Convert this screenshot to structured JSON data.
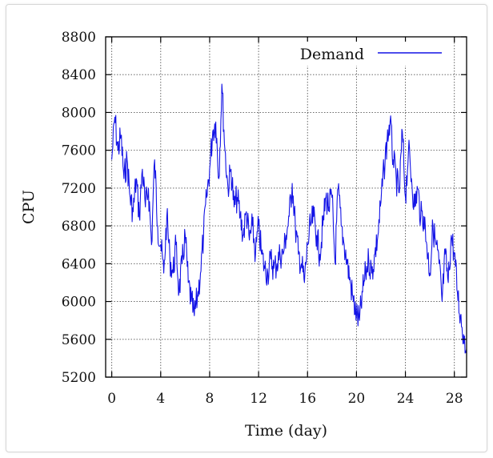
{
  "chart_data": {
    "type": "line",
    "title": "",
    "xlabel": "Time (day)",
    "ylabel": "CPU",
    "xlim": [
      -0.5,
      29
    ],
    "ylim": [
      5200,
      8800
    ],
    "x_ticks": [
      0,
      4,
      8,
      12,
      16,
      20,
      24,
      28
    ],
    "y_ticks": [
      5200,
      5600,
      6000,
      6400,
      6800,
      7200,
      7600,
      8000,
      8400,
      8800
    ],
    "grid": true,
    "legend": "top-right",
    "colors": {
      "series": "#1414e6",
      "grid": "#555555",
      "axis": "#000000"
    },
    "series": [
      {
        "name": "Demand",
        "x": [
          0,
          0.25,
          0.5,
          0.75,
          1,
          1.25,
          1.5,
          1.75,
          2,
          2.25,
          2.5,
          2.75,
          3,
          3.25,
          3.5,
          3.75,
          4,
          4.25,
          4.5,
          4.75,
          5,
          5.25,
          5.5,
          5.75,
          6,
          6.25,
          6.5,
          6.75,
          7,
          7.25,
          7.5,
          7.75,
          8,
          8.25,
          8.5,
          8.75,
          9,
          9.25,
          9.5,
          9.75,
          10,
          10.25,
          10.5,
          10.75,
          11,
          11.25,
          11.5,
          11.75,
          12,
          12.25,
          12.5,
          12.75,
          13,
          13.25,
          13.5,
          13.75,
          14,
          14.25,
          14.5,
          14.75,
          15,
          15.25,
          15.5,
          15.75,
          16,
          16.25,
          16.5,
          16.75,
          17,
          17.25,
          17.5,
          17.75,
          18,
          18.25,
          18.5,
          18.75,
          19,
          19.25,
          19.5,
          19.75,
          20,
          20.25,
          20.5,
          20.75,
          21,
          21.25,
          21.5,
          21.75,
          22,
          22.25,
          22.5,
          22.75,
          23,
          23.25,
          23.5,
          23.75,
          24,
          24.25,
          24.5,
          24.75,
          25,
          25.25,
          25.5,
          25.75,
          26,
          26.25,
          26.5,
          26.75,
          27,
          27.25,
          27.5,
          27.75,
          28,
          28.25,
          28.5,
          28.75,
          29
        ],
        "y": [
          7500,
          7950,
          7600,
          7750,
          7300,
          7500,
          7100,
          6950,
          7300,
          6900,
          7400,
          7000,
          7200,
          6600,
          7500,
          6800,
          6600,
          6300,
          6900,
          6450,
          6300,
          6600,
          6100,
          6400,
          6700,
          6200,
          6000,
          5850,
          6050,
          6300,
          6700,
          7100,
          7400,
          7800,
          7900,
          7300,
          8300,
          7600,
          7200,
          7400,
          7000,
          7100,
          6900,
          6700,
          6950,
          6650,
          6800,
          6500,
          6800,
          6500,
          6350,
          6300,
          6450,
          6350,
          6400,
          6500,
          6500,
          6700,
          6900,
          7250,
          6800,
          6500,
          6400,
          6200,
          6600,
          6800,
          6900,
          6700,
          6500,
          6800,
          7100,
          7000,
          7100,
          6400,
          7200,
          6800,
          6600,
          6400,
          6200,
          6000,
          5850,
          5800,
          6100,
          6300,
          6450,
          6300,
          6500,
          6700,
          7050,
          7400,
          7700,
          7900,
          7500,
          7300,
          7150,
          7800,
          7100,
          7600,
          7300,
          7000,
          7200,
          6900,
          6900,
          6600,
          6300,
          6800,
          6600,
          6400,
          6000,
          6500,
          6200,
          6700,
          6500,
          6100,
          5850,
          5650,
          5500
        ]
      }
    ]
  }
}
